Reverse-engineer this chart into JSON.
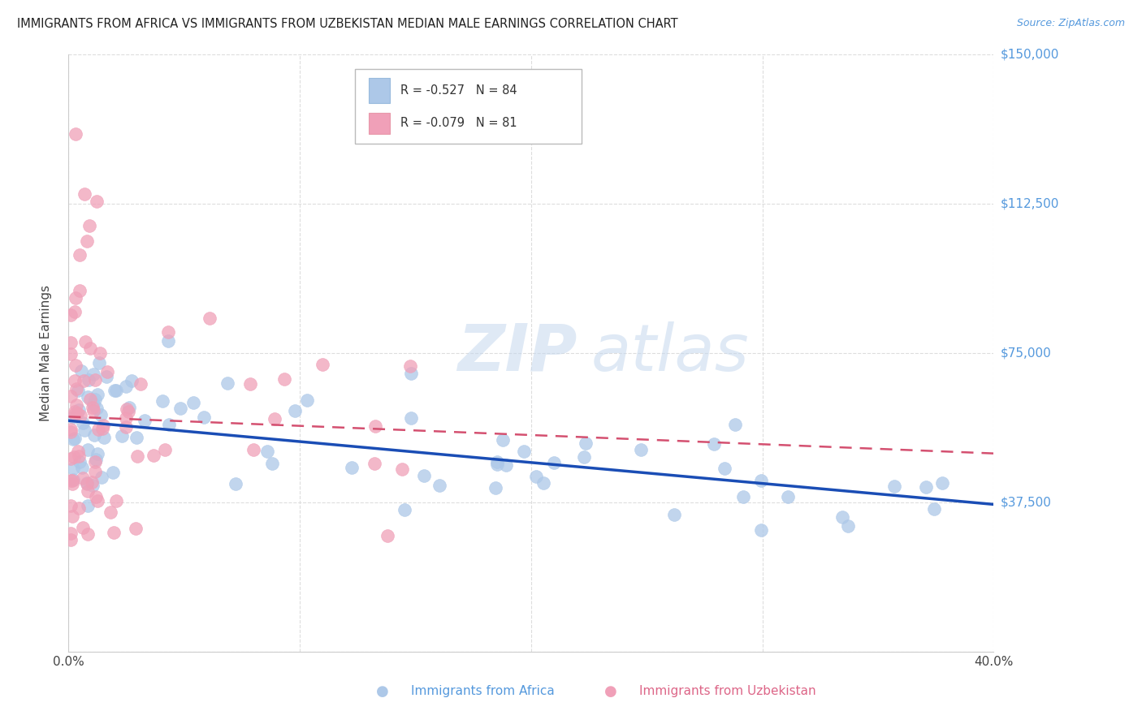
{
  "title": "IMMIGRANTS FROM AFRICA VS IMMIGRANTS FROM UZBEKISTAN MEDIAN MALE EARNINGS CORRELATION CHART",
  "source": "Source: ZipAtlas.com",
  "ylabel": "Median Male Earnings",
  "xlim": [
    0.0,
    0.4
  ],
  "ylim": [
    0,
    150000
  ],
  "yticks": [
    0,
    37500,
    75000,
    112500,
    150000
  ],
  "ytick_labels": [
    "",
    "$37,500",
    "$75,000",
    "$112,500",
    "$150,000"
  ],
  "xticks": [
    0.0,
    0.1,
    0.2,
    0.3,
    0.4
  ],
  "xtick_labels": [
    "0.0%",
    "",
    "",
    "",
    "40.0%"
  ],
  "africa_color": "#adc8e8",
  "africa_edge": "#adc8e8",
  "uzbekistan_color": "#f0a0b8",
  "uzbekistan_edge": "#f0a0b8",
  "africa_line_color": "#1a4db5",
  "uzbekistan_line_color": "#d45070",
  "legend_africa_r": "-0.527",
  "legend_africa_n": "84",
  "legend_uzbekistan_r": "-0.079",
  "legend_uzbekistan_n": "81",
  "background_color": "#ffffff",
  "grid_color": "#dddddd",
  "title_color": "#222222",
  "source_color": "#5599dd",
  "ylabel_color": "#444444",
  "ytick_color": "#5599dd",
  "xtick_color": "#444444",
  "legend_africa_color": "#e05070",
  "legend_uzbekistan_color": "#e05070",
  "bottom_africa_color": "#5599dd",
  "bottom_uzbekistan_color": "#dd6688"
}
